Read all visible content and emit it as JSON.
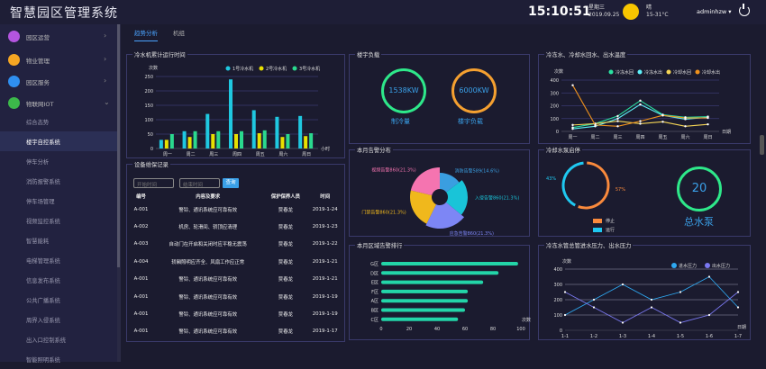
{
  "header": {
    "title": "智慧园区管理系统",
    "time": "15:10:51",
    "weekday": "星期三",
    "date": "2019.09.25",
    "weather": "晴",
    "temp": "15-31°C",
    "user": "adminhzw ▾"
  },
  "sidebar": {
    "groups": [
      {
        "label": "园区运营",
        "color": "#b455e0"
      },
      {
        "label": "物业管理",
        "color": "#f5a623"
      },
      {
        "label": "园区服务",
        "color": "#2f8ff0"
      },
      {
        "label": "物联网IOT",
        "color": "#3cb94a"
      }
    ],
    "items": [
      "综合态势",
      "楼宇自控系统",
      "停车分析",
      "消防报警系统",
      "停车场管理",
      "视频监控系统",
      "智慧能耗",
      "电梯管理系统",
      "信息发布系统",
      "公共广播系统",
      "周界入侵系统",
      "出入口控制系统",
      "智能照明系统"
    ],
    "active": 1
  },
  "tabs": [
    "趋势分析",
    "机组"
  ],
  "bar_panel": {
    "title": "冷水机累计运行时间"
  },
  "records": {
    "title": "设备维保记录",
    "start_placeholder": "开始时间",
    "end_placeholder": "结束时间",
    "query": "查询",
    "columns": [
      "编号",
      "内容及要求",
      "保护保养人员",
      "时间"
    ],
    "rows": [
      [
        "A-001",
        "警铃、通讯系统应可靠有效",
        "贾春龙",
        "2019-1-24"
      ],
      [
        "A-002",
        "机房、轮滑间、轿顶应清理",
        "贾春龙",
        "2019-1-23"
      ],
      [
        "A-003",
        "自动门在开启和关闭时应平稳无震荡",
        "贾春龙",
        "2019-1-22"
      ],
      [
        "A-004",
        "轿厢照明应齐全、风扇工作应正常",
        "贾春龙",
        "2019-1-21"
      ],
      [
        "A-001",
        "警铃、通讯系统应可靠有效",
        "贾春龙",
        "2019-1-21"
      ],
      [
        "A-001",
        "警铃、通讯系统应可靠有效",
        "贾春龙",
        "2019-1-19"
      ],
      [
        "A-001",
        "警铃、通讯系统应可靠有效",
        "贾春龙",
        "2019-1-19"
      ],
      [
        "A-001",
        "警铃、通讯系统应可靠有效",
        "贾春龙",
        "2019-1-17"
      ]
    ]
  },
  "load": {
    "title": "楼宇负载",
    "cool_value": "1538KW",
    "cool_label": "制冷量",
    "load_value": "6000KW",
    "load_label": "楼宇负载"
  },
  "pie_panel": {
    "title": "本月告警分布"
  },
  "rank_panel": {
    "title": "本月区域告警排行"
  },
  "temp_panel": {
    "title": "冷冻水、冷却水回水、出水温度"
  },
  "pump": {
    "title": "冷却水泵启停",
    "total": "20",
    "total_label": "总水泵"
  },
  "pressure_panel": {
    "title": "冷冻水管总管进水压力、出水压力"
  },
  "chart_data": [
    {
      "type": "bar",
      "ylabel": "次数",
      "xlabel": "小时",
      "ylim": [
        0,
        250
      ],
      "yticks": [
        0,
        50,
        100,
        150,
        200,
        250
      ],
      "categories": [
        "周一",
        "周二",
        "周三",
        "周四",
        "周五",
        "周六",
        "周日"
      ],
      "series": [
        {
          "name": "1号冷水机",
          "color": "#1fc8e0",
          "values": [
            30,
            60,
            120,
            240,
            133,
            110,
            113
          ]
        },
        {
          "name": "2号冷水机",
          "color": "#e8e000",
          "values": [
            30,
            40,
            50,
            50,
            53,
            40,
            43
          ]
        },
        {
          "name": "3号冷水机",
          "color": "#2ad98e",
          "values": [
            50,
            60,
            60,
            60,
            63,
            50,
            53
          ]
        }
      ],
      "legend": "top-right",
      "grid": true
    },
    {
      "type": "pie",
      "variant": "rose",
      "slices": [
        {
          "label": "消防告警589(14.6%)",
          "value": 589,
          "color": "#3a9ee0"
        },
        {
          "label": "入侵告警860(21.3%)",
          "value": 860,
          "color": "#19c4d8"
        },
        {
          "label": "应急告警860(21.3%)",
          "value": 860,
          "color": "#7d86f5"
        },
        {
          "label": "门禁告警860(21.3%)",
          "value": 860,
          "color": "#f0b81c"
        },
        {
          "label": "视频告警860(21.3%)",
          "value": 860,
          "color": "#f574b0"
        }
      ]
    },
    {
      "type": "bar",
      "orientation": "horizontal",
      "xlabel": "次数",
      "xlim": [
        0,
        100
      ],
      "xticks": [
        0,
        20,
        40,
        60,
        80,
        100
      ],
      "categories": [
        "G区",
        "D区",
        "E区",
        "F区",
        "A区",
        "B区",
        "C区"
      ],
      "values": [
        98,
        84,
        73,
        62,
        62,
        60,
        55
      ],
      "color": "#23d5a8"
    },
    {
      "type": "line",
      "ylabel": "次数",
      "xlabel": "日期",
      "ylim": [
        0,
        400
      ],
      "yticks": [
        0,
        100,
        200,
        300,
        400
      ],
      "categories": [
        "周一",
        "周二",
        "周三",
        "周四",
        "周五",
        "周六",
        "周日"
      ],
      "legend": "top-right",
      "grid": true,
      "series": [
        {
          "name": "冷冻水回",
          "color": "#2ae0a0",
          "values": [
            30,
            60,
            120,
            240,
            130,
            110,
            115
          ]
        },
        {
          "name": "冷冻水出",
          "color": "#5ef0f8",
          "values": [
            20,
            40,
            100,
            210,
            125,
            95,
            110
          ]
        },
        {
          "name": "冷却水回",
          "color": "#f5d555",
          "values": [
            50,
            60,
            80,
            60,
            75,
            40,
            55
          ]
        },
        {
          "name": "冷却水出",
          "color": "#f0921c",
          "values": [
            360,
            50,
            40,
            80,
            125,
            105,
            105
          ]
        }
      ]
    },
    {
      "type": "pie",
      "variant": "donut",
      "slices": [
        {
          "label": "停止",
          "value": 57,
          "text": "57%",
          "color": "#fa8a3c"
        },
        {
          "label": "运行",
          "value": 43,
          "text": "43%",
          "color": "#1fc8f0"
        }
      ]
    },
    {
      "type": "line",
      "ylabel": "次数",
      "xlabel": "日期",
      "ylim": [
        0,
        400
      ],
      "yticks": [
        0,
        100,
        200,
        300,
        400
      ],
      "categories": [
        "1-1",
        "1-2",
        "1-3",
        "1-4",
        "1-5",
        "1-6",
        "1-7"
      ],
      "legend": "top-right",
      "grid": true,
      "series": [
        {
          "name": "进水压力",
          "color": "#2ea8f0",
          "values": [
            100,
            200,
            300,
            200,
            250,
            350,
            150
          ]
        },
        {
          "name": "出水压力",
          "color": "#7a78f0",
          "values": [
            250,
            150,
            50,
            150,
            50,
            100,
            250
          ]
        }
      ]
    }
  ]
}
